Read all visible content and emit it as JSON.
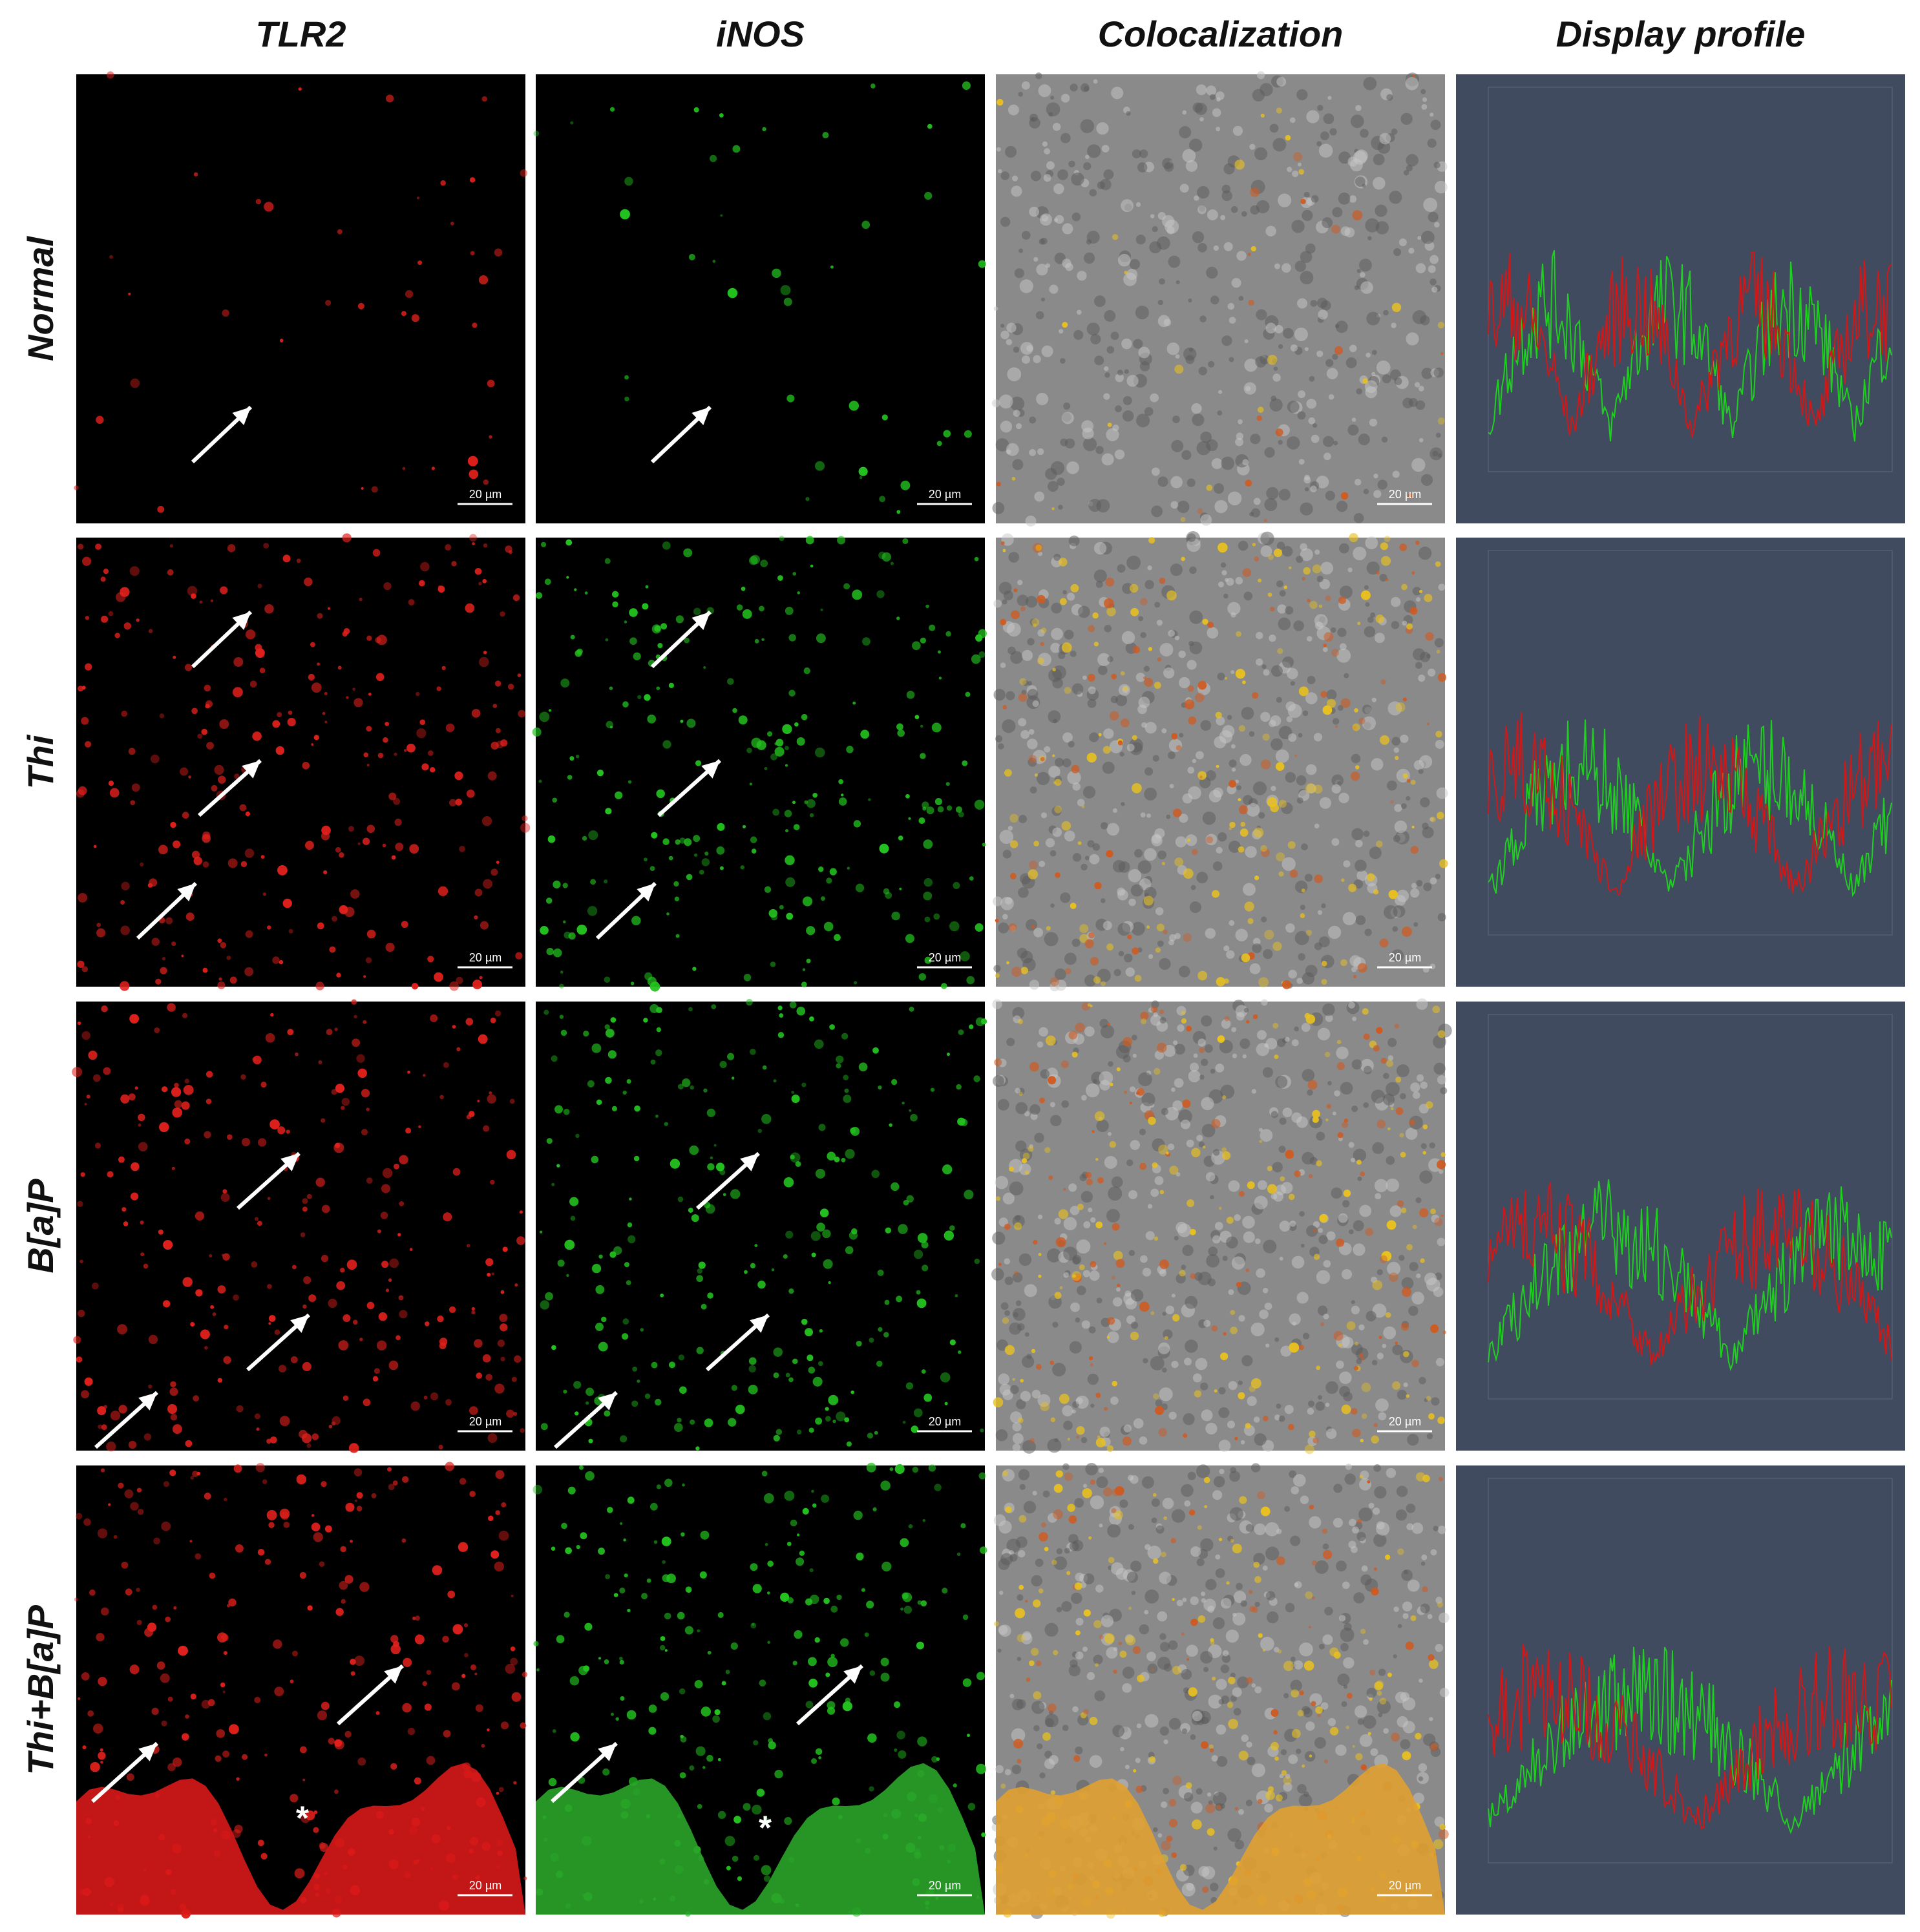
{
  "columns": [
    "TLR2",
    "iNOS",
    "Colocalization",
    "Display profile"
  ],
  "rows": [
    "Normal",
    "Thi",
    "B[a]P",
    "Thi+B[a]P"
  ],
  "scale_bar": "20 µm",
  "marker": "*"
}
